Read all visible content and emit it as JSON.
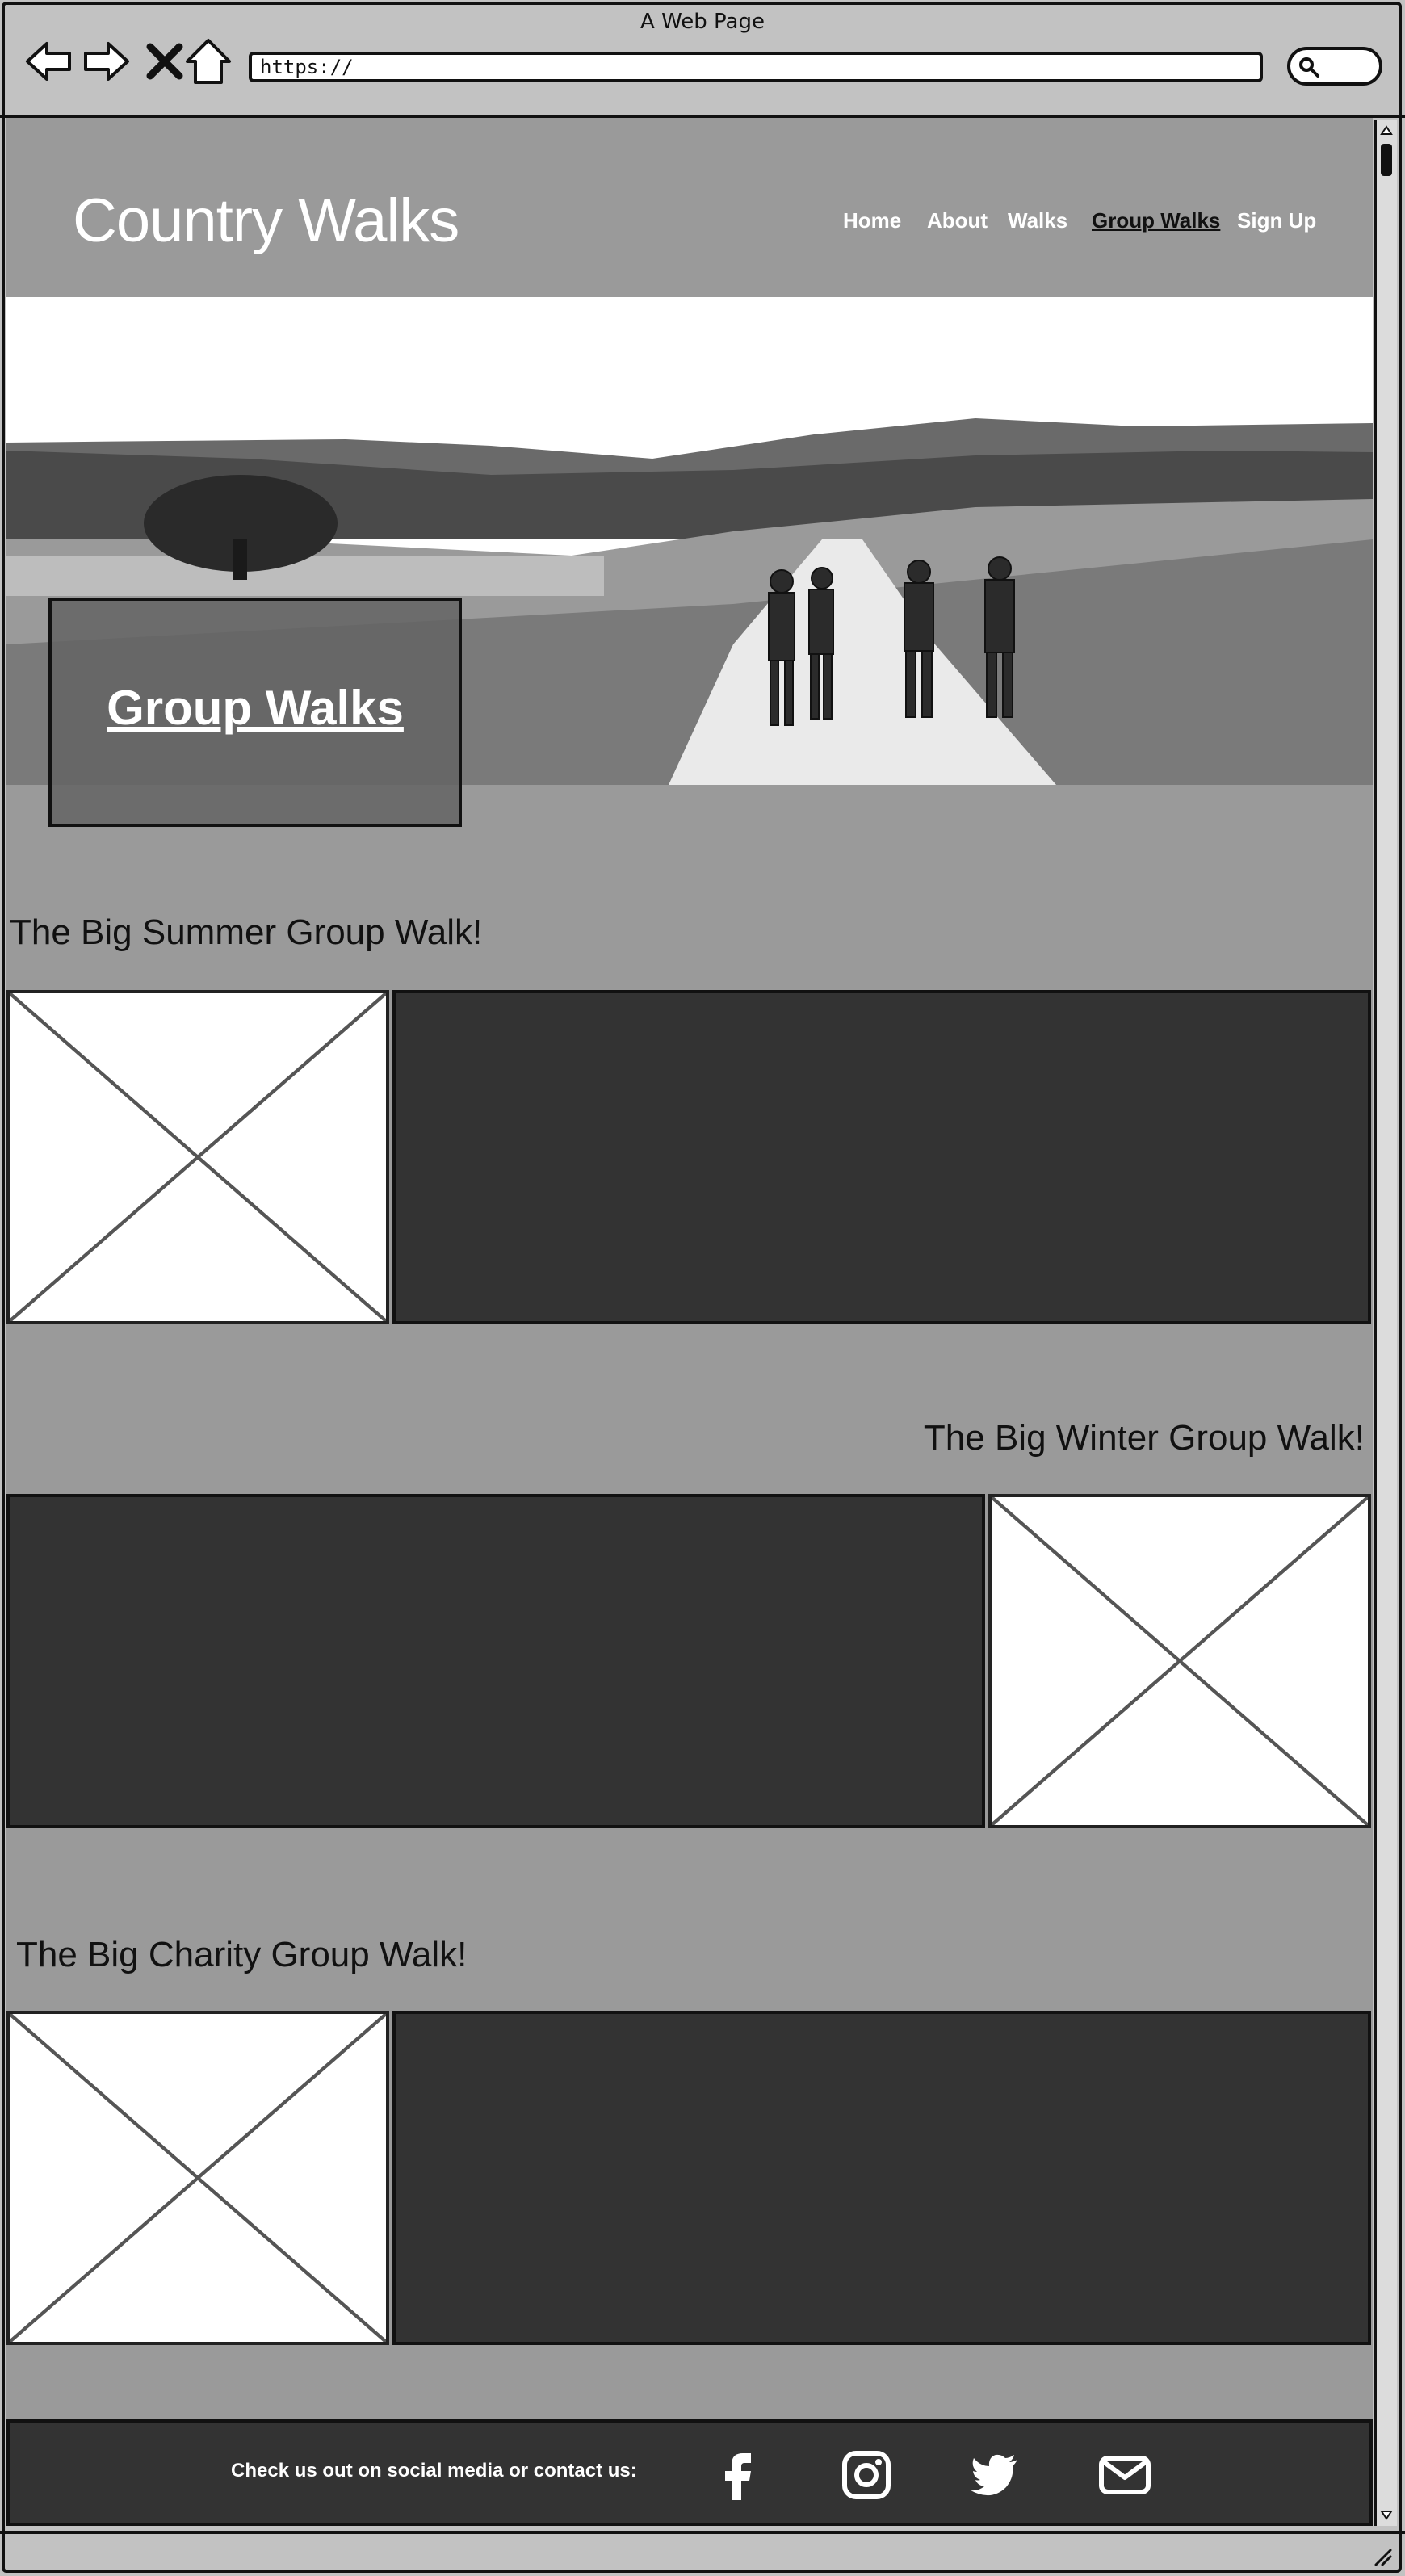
{
  "browser": {
    "title": "A Web Page",
    "url": "https://"
  },
  "site": {
    "title": "Country Walks",
    "nav": [
      {
        "label": "Home"
      },
      {
        "label": "About"
      },
      {
        "label": "Walks"
      },
      {
        "label": "Group Walks",
        "active": true
      },
      {
        "label": "Sign Up"
      }
    ]
  },
  "hero": {
    "heading": "Group Walks"
  },
  "sections": [
    {
      "title": "The Big Summer Group Walk!"
    },
    {
      "title": "The Big Winter Group Walk!"
    },
    {
      "title": "The Big Charity Group Walk!"
    }
  ],
  "footer": {
    "text": "Check us out on social media or contact us:",
    "icons": [
      "facebook-icon",
      "instagram-icon",
      "twitter-icon",
      "email-icon"
    ]
  },
  "colors": {
    "page_bg": "#9a9a9a",
    "block_dark": "#333333",
    "text_light": "#ffffff"
  }
}
